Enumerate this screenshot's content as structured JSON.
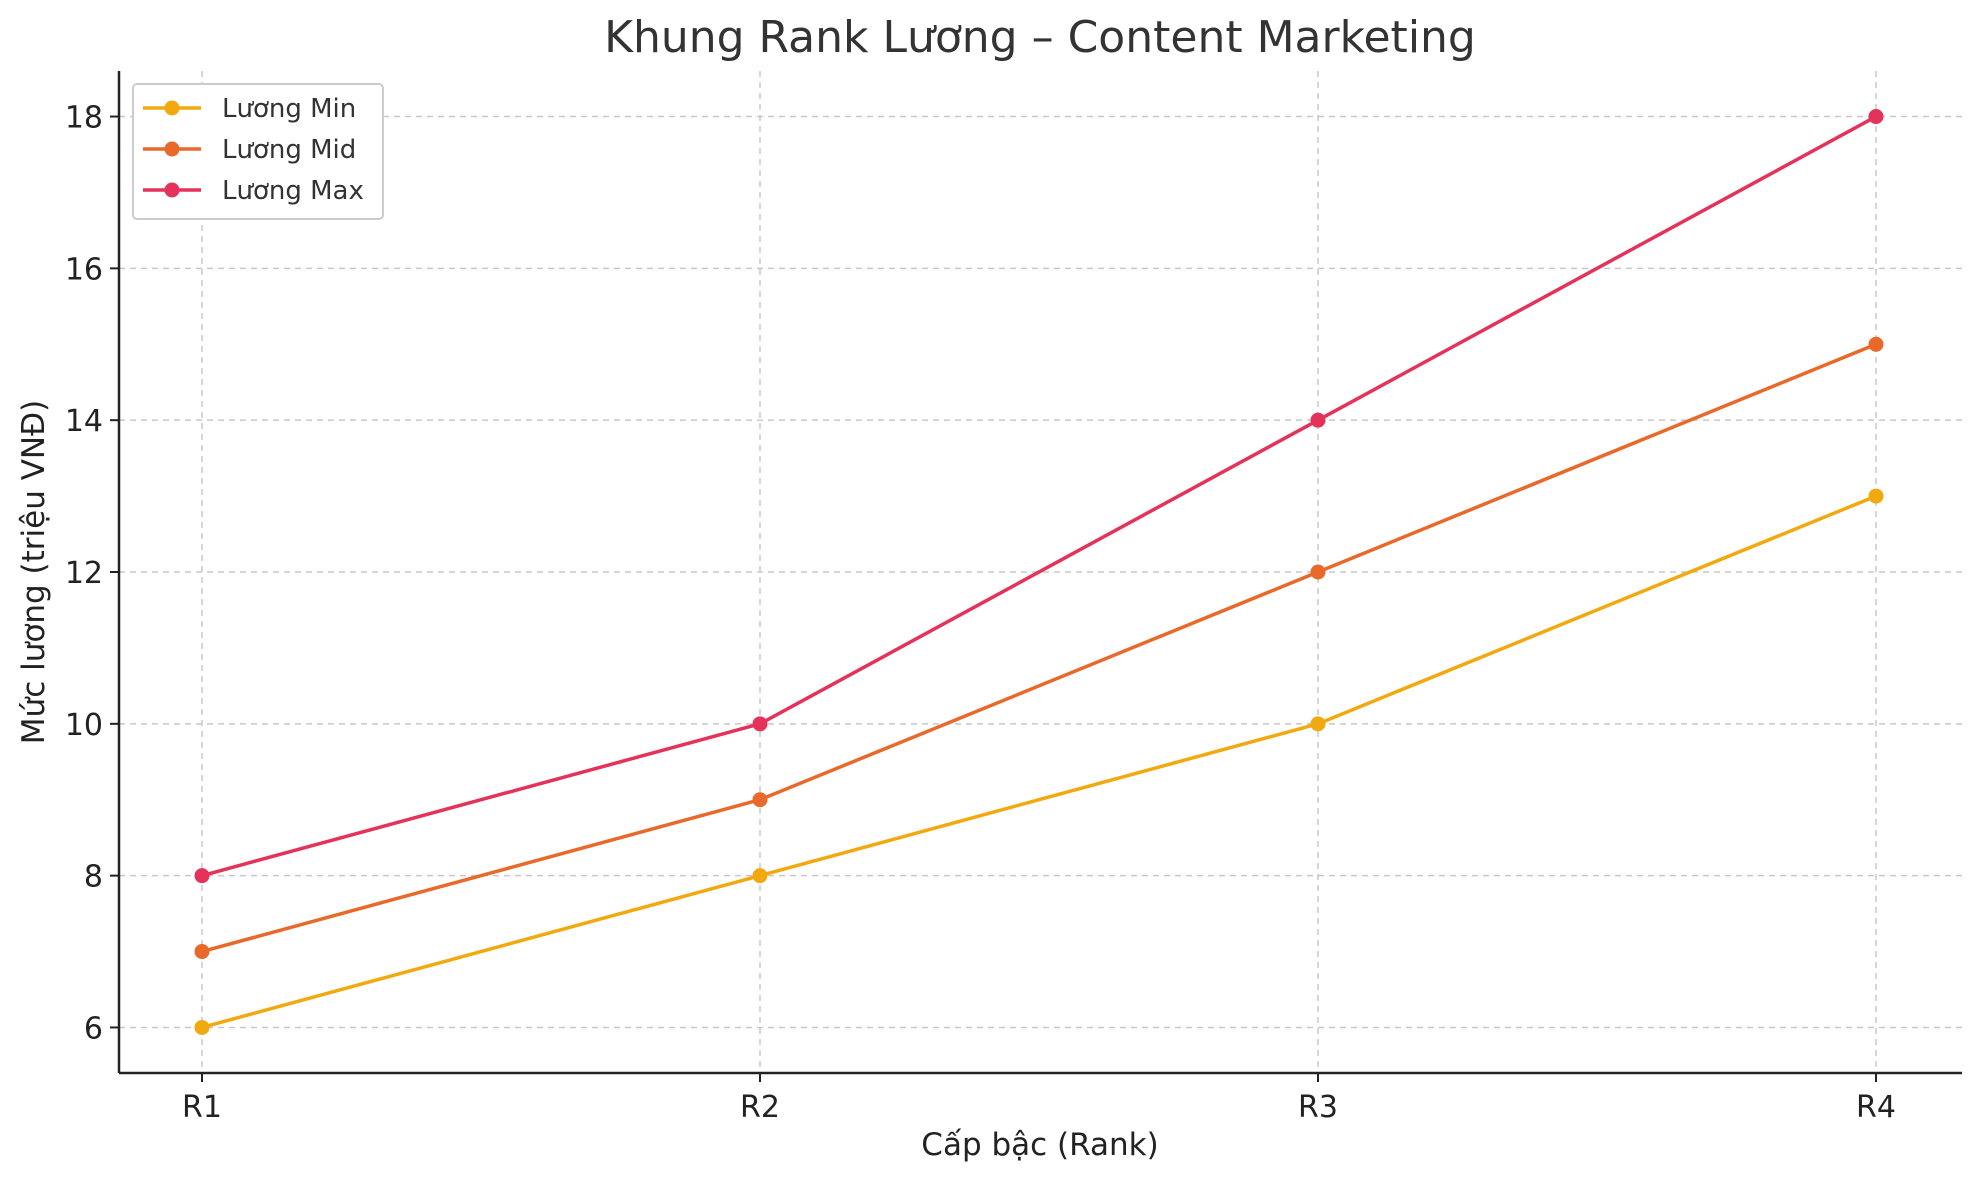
{
  "chart_data": {
    "type": "line",
    "title": "Khung Rank Lương – Content Marketing",
    "xlabel": "Cấp bậc (Rank)",
    "ylabel": "Mức lương (triệu VNĐ)",
    "categories": [
      "R1",
      "R2",
      "R3",
      "R4"
    ],
    "ylim": [
      5.4,
      18.6
    ],
    "yticks": [
      6,
      8,
      10,
      12,
      14,
      16,
      18
    ],
    "grid": true,
    "legend_position": "top-left",
    "series": [
      {
        "name": "Lương Min",
        "color": "#F2A90F",
        "values": [
          6,
          8,
          10,
          13
        ]
      },
      {
        "name": "Lương Mid",
        "color": "#E8692A",
        "values": [
          7,
          9,
          12,
          15
        ]
      },
      {
        "name": "Lương Max",
        "color": "#E4325A",
        "values": [
          8,
          10,
          14,
          18
        ]
      }
    ]
  }
}
